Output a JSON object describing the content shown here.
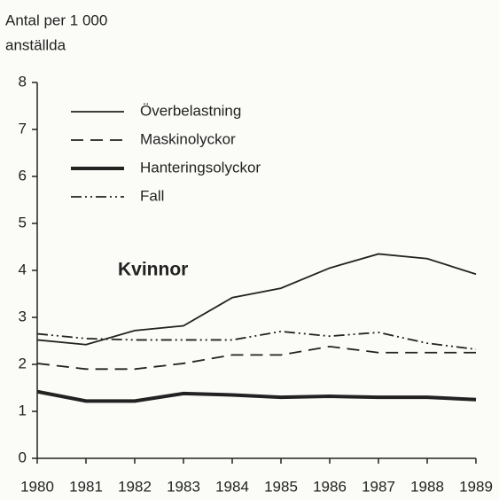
{
  "chart_data": {
    "type": "line",
    "y_label": [
      "Antal per 1 000",
      "anställda"
    ],
    "annotation": "Kvinnor",
    "categories": [
      "1980",
      "1981",
      "1982",
      "1983",
      "1984",
      "1985",
      "1986",
      "1987",
      "1988",
      "1989"
    ],
    "series": [
      {
        "name": "Överbelastning",
        "color": "#222222",
        "line_style": "solid",
        "values": [
          2.52,
          2.42,
          2.72,
          2.82,
          3.42,
          3.62,
          4.05,
          4.35,
          4.25,
          3.92
        ]
      },
      {
        "name": "Maskinolyckor",
        "color": "#222222",
        "line_style": "dashed",
        "values": [
          2.02,
          1.9,
          1.9,
          2.02,
          2.2,
          2.2,
          2.38,
          2.25,
          2.25,
          2.25
        ]
      },
      {
        "name": "Hanteringsolyckor",
        "color": "#222222",
        "line_style": "bold",
        "values": [
          1.42,
          1.22,
          1.22,
          1.38,
          1.35,
          1.3,
          1.32,
          1.3,
          1.3,
          1.25
        ]
      },
      {
        "name": "Fall",
        "color": "#222222",
        "line_style": "dashdotdot",
        "values": [
          2.65,
          2.55,
          2.52,
          2.52,
          2.52,
          2.7,
          2.6,
          2.68,
          2.45,
          2.32
        ]
      }
    ],
    "ylim": [
      0,
      8
    ],
    "yticks": [
      0,
      1,
      2,
      3,
      4,
      5,
      6,
      7,
      8
    ],
    "grid": false,
    "legend": "top-left"
  }
}
